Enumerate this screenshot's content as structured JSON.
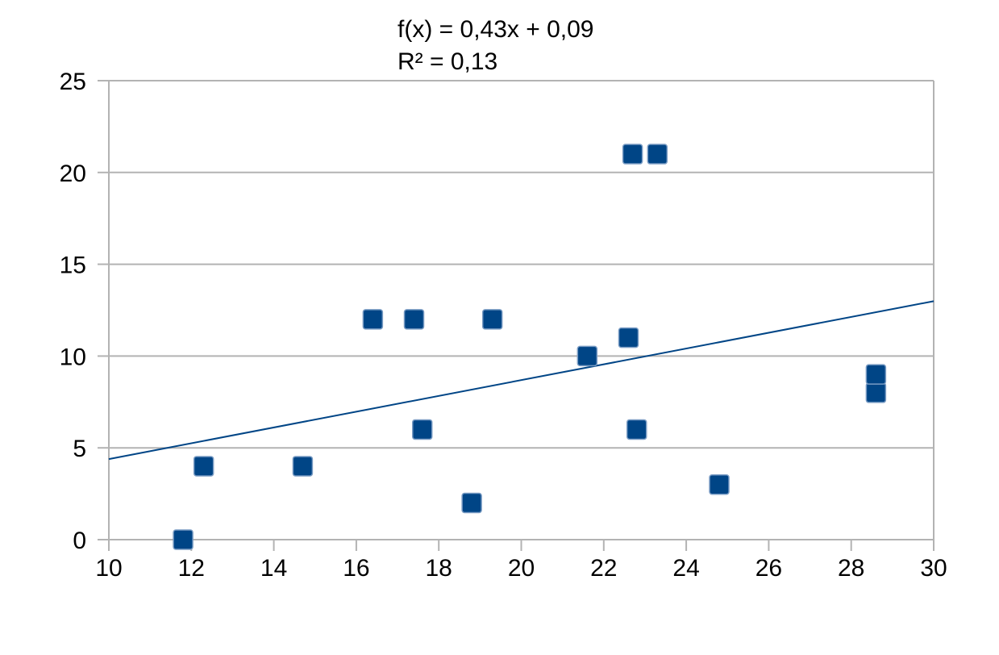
{
  "chart_data": {
    "type": "scatter",
    "title": "",
    "xlabel": "",
    "ylabel": "",
    "xlim": [
      10,
      30
    ],
    "ylim": [
      0,
      25
    ],
    "x_ticks": [
      10,
      12,
      14,
      16,
      18,
      20,
      22,
      24,
      26,
      28,
      30
    ],
    "y_ticks": [
      0,
      5,
      10,
      15,
      20,
      25
    ],
    "grid": "horizontal",
    "legend": "none",
    "annotations": [
      "f(x) = 0,43x + 0,09",
      "R² = 0,13"
    ],
    "trendline": {
      "type": "linear",
      "slope": 0.43,
      "intercept": 0.09
    },
    "series": [
      {
        "points": [
          {
            "x": 11.8,
            "y": 0
          },
          {
            "x": 12.3,
            "y": 4
          },
          {
            "x": 14.7,
            "y": 4
          },
          {
            "x": 16.4,
            "y": 12
          },
          {
            "x": 17.4,
            "y": 12
          },
          {
            "x": 17.6,
            "y": 6
          },
          {
            "x": 18.8,
            "y": 2
          },
          {
            "x": 19.3,
            "y": 12
          },
          {
            "x": 21.6,
            "y": 10
          },
          {
            "x": 22.6,
            "y": 11
          },
          {
            "x": 22.7,
            "y": 21
          },
          {
            "x": 22.8,
            "y": 6
          },
          {
            "x": 23.3,
            "y": 21
          },
          {
            "x": 24.8,
            "y": 3
          },
          {
            "x": 28.6,
            "y": 8
          },
          {
            "x": 28.6,
            "y": 9
          }
        ]
      }
    ],
    "colors": {
      "marker": "#004586",
      "trendline": "#004586",
      "grid": "#b3b3b3",
      "axis": "#b3b3b3"
    }
  }
}
